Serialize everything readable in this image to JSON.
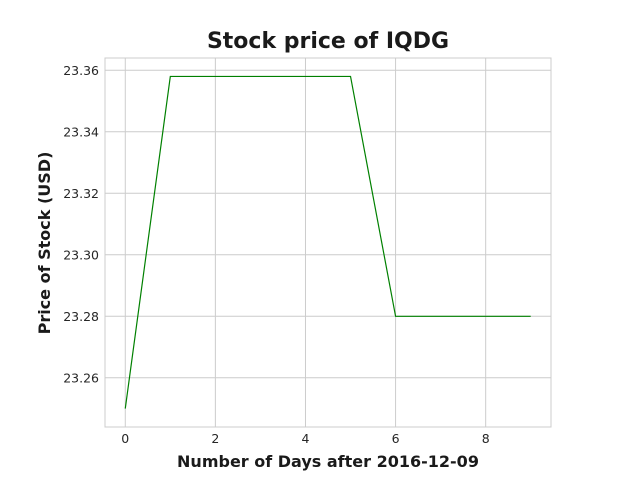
{
  "chart_data": {
    "type": "line",
    "title": "Stock price of IQDG",
    "xlabel": "Number of Days after 2016-12-09",
    "ylabel": "Price of Stock (USD)",
    "x": [
      0,
      1,
      2,
      3,
      4,
      5,
      6,
      7,
      8,
      9
    ],
    "series": [
      {
        "values": [
          23.25,
          23.358,
          23.358,
          23.358,
          23.358,
          23.358,
          23.28,
          23.28,
          23.28,
          23.28
        ],
        "color": "#008000"
      }
    ],
    "xlim": [
      -0.45,
      9.45
    ],
    "ylim": [
      23.244,
      23.364
    ],
    "xticks": [
      0,
      2,
      4,
      6,
      8
    ],
    "yticks": [
      23.26,
      23.28,
      23.3,
      23.32,
      23.34,
      23.36
    ],
    "ytick_labels": [
      "23.26",
      "23.28",
      "23.30",
      "23.32",
      "23.34",
      "23.36"
    ],
    "xtick_labels": [
      "0",
      "2",
      "4",
      "6",
      "8"
    ],
    "grid": true,
    "style": "seaborn-whitegrid"
  }
}
